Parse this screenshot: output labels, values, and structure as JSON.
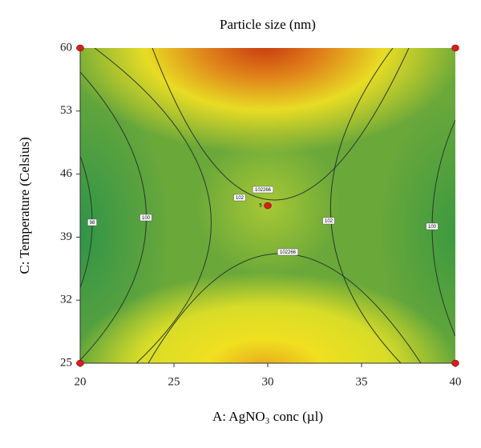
{
  "chart_data": {
    "type": "contour",
    "title": "Particle size (nm)",
    "x_label": "A: AgNO₃ conc (µl)",
    "y_label": "C: Temperature (Celsius)",
    "xlim": [
      20,
      40
    ],
    "xticks": [
      20,
      25,
      30,
      35,
      40
    ],
    "ylim": [
      25,
      60
    ],
    "yticks": [
      25,
      32,
      39,
      46,
      53,
      60
    ],
    "contour_labels": [
      "98",
      "100",
      "102",
      "102266",
      "102",
      "102266",
      "100"
    ],
    "points": {
      "x": [
        20,
        40,
        20,
        40,
        30
      ],
      "y": [
        60,
        60,
        25,
        25,
        42.5
      ],
      "color": "#d42020"
    },
    "center_label": "5"
  }
}
